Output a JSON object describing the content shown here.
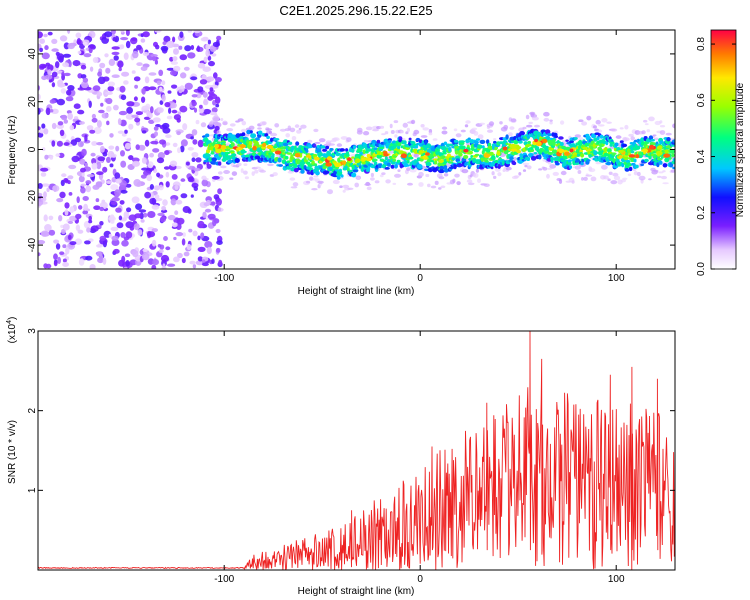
{
  "figure_title": "C2E1.2025.296.15.22.E25",
  "chart_data": [
    {
      "type": "heatmap",
      "name": "spectrogram",
      "xlabel": "Height of straight line (km)",
      "ylabel": "Frequency (Hz)",
      "xlim": [
        -195,
        130
      ],
      "ylim": [
        -50,
        50
      ],
      "xticks": [
        -100,
        0,
        100
      ],
      "xtick_labels": [
        "-100",
        "0",
        "100"
      ],
      "yticks": [
        -40,
        -20,
        0,
        20,
        40
      ],
      "ytick_labels": [
        "-40",
        "-20",
        "0",
        "20",
        "40"
      ],
      "colorbar": {
        "label": "Normalized spectral amplitude",
        "range": [
          0,
          0.85
        ],
        "ticks": [
          0,
          0.2,
          0.4,
          0.6,
          0.8
        ],
        "tick_labels": [
          "0.0",
          "0.2",
          "0.4",
          "0.6",
          "0.8"
        ]
      },
      "noise_region_x": [
        -195,
        -102
      ],
      "signal_start_x": -110,
      "signal_band_half_width_hz": 6,
      "signal_center_track": [
        {
          "x": -110,
          "f": 0
        },
        {
          "x": -95,
          "f": 0
        },
        {
          "x": -85,
          "f": 2
        },
        {
          "x": -70,
          "f": -2
        },
        {
          "x": -55,
          "f": -4
        },
        {
          "x": -40,
          "f": -6
        },
        {
          "x": -25,
          "f": -3
        },
        {
          "x": -10,
          "f": -1
        },
        {
          "x": 0,
          "f": -2
        },
        {
          "x": 10,
          "f": -4
        },
        {
          "x": 20,
          "f": -1
        },
        {
          "x": 35,
          "f": -2
        },
        {
          "x": 48,
          "f": 0
        },
        {
          "x": 62,
          "f": 3
        },
        {
          "x": 75,
          "f": -2
        },
        {
          "x": 90,
          "f": 1
        },
        {
          "x": 105,
          "f": -3
        },
        {
          "x": 118,
          "f": 0
        },
        {
          "x": 130,
          "f": -2
        }
      ]
    },
    {
      "type": "line",
      "name": "snr",
      "xlabel": "Height of straight line (km)",
      "ylabel": "SNR (10 * v/v)",
      "y_multiplier_label": "(x10",
      "y_multiplier_exp": "4",
      "y_multiplier_close": ")",
      "xlim": [
        -195,
        130
      ],
      "ylim": [
        0,
        3
      ],
      "xticks": [
        -100,
        0,
        100
      ],
      "xtick_labels": [
        "-100",
        "0",
        "100"
      ],
      "yticks": [
        1,
        2,
        3
      ],
      "ytick_labels": [
        "1",
        "2",
        "3"
      ],
      "color": "#ee2222",
      "envelope": [
        {
          "x": -195,
          "y": 0.02
        },
        {
          "x": -90,
          "y": 0.03
        },
        {
          "x": -85,
          "y": 0.2
        },
        {
          "x": -65,
          "y": 0.38
        },
        {
          "x": -40,
          "y": 0.55
        },
        {
          "x": -20,
          "y": 0.95
        },
        {
          "x": 0,
          "y": 1.35
        },
        {
          "x": 20,
          "y": 1.7
        },
        {
          "x": 40,
          "y": 2.0
        },
        {
          "x": 55,
          "y": 2.35
        },
        {
          "x": 80,
          "y": 2.2
        },
        {
          "x": 100,
          "y": 2.15
        },
        {
          "x": 130,
          "y": 1.9
        }
      ],
      "peaks": [
        {
          "x": 56,
          "y": 3.0
        },
        {
          "x": 108,
          "y": 2.55
        },
        {
          "x": 97,
          "y": 2.45
        },
        {
          "x": 62,
          "y": 2.65
        },
        {
          "x": 34,
          "y": 2.1
        },
        {
          "x": 121,
          "y": 2.4
        },
        {
          "x": -35,
          "y": 0.75
        },
        {
          "x": 6,
          "y": 1.55
        }
      ]
    }
  ]
}
